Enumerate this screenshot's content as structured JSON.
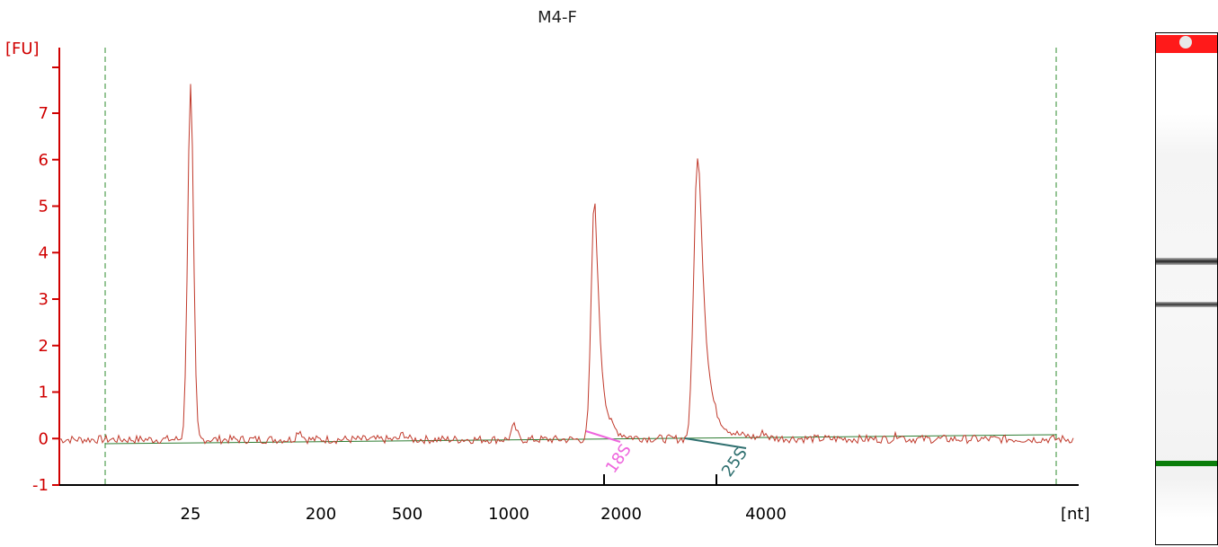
{
  "window": {
    "title": "M4-F"
  },
  "chart_data": {
    "type": "line",
    "title": "M4-F",
    "ylabel": "[FU]",
    "xlabel": "[nt]",
    "ylim": [
      -1,
      8
    ],
    "y_ticks": [
      -1,
      0,
      1,
      2,
      3,
      4,
      5,
      6,
      7
    ],
    "x_ticks": [
      "25",
      "200",
      "500",
      "1000",
      "2000",
      "4000"
    ],
    "x_scale": "log",
    "peaks": [
      {
        "label": "25",
        "height": 7.6
      },
      {
        "label": "18S",
        "height": 5.0
      },
      {
        "label": "25S",
        "height": 6.0
      }
    ],
    "annotations": [
      {
        "text": "18S",
        "color": "#ee66dd"
      },
      {
        "text": "25S",
        "color": "#2e6f6f"
      }
    ],
    "colors": {
      "trace": "#c0392b",
      "axis": "#d00000",
      "baseline": "#2e7d32",
      "region_lines": "#2e8b2e"
    }
  },
  "gel": {
    "well_color": "#ff1a1a",
    "marker_color": "#0a7d0a",
    "band_color": "#333333"
  }
}
